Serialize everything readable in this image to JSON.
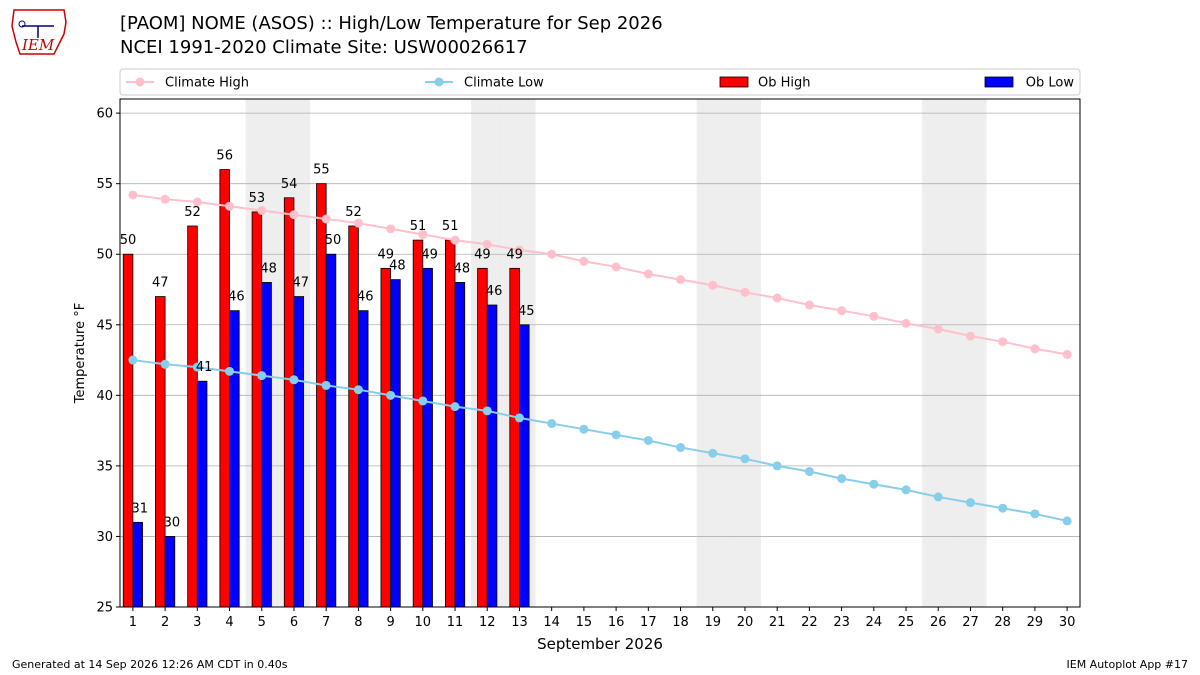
{
  "header": {
    "title_line1": "[PAOM] NOME (ASOS) :: High/Low Temperature for Sep 2026",
    "title_line2": "NCEI 1991-2020 Climate Site: USW00026617",
    "logo_text": "IEM"
  },
  "footer": {
    "generated": "Generated at 14 Sep 2026 12:26 AM CDT in 0.40s",
    "app": "IEM Autoplot App #17"
  },
  "colors": {
    "ob_high": "#ff0000",
    "ob_low": "#0000ff",
    "climate_high": "#ffc0cb",
    "climate_low": "#87ceeb",
    "weekend_shade": "#eeeeee",
    "grid": "#b0b0b0",
    "logo": "#cc0000"
  },
  "chart_data": {
    "type": "bar",
    "xlabel": "September 2026",
    "ylabel": "Temperature °F",
    "ylim": [
      25,
      61
    ],
    "yticks": [
      25,
      30,
      35,
      40,
      45,
      50,
      55,
      60
    ],
    "xlim": [
      0.6,
      30.4
    ],
    "days": [
      1,
      2,
      3,
      4,
      5,
      6,
      7,
      8,
      9,
      10,
      11,
      12,
      13,
      14,
      15,
      16,
      17,
      18,
      19,
      20,
      21,
      22,
      23,
      24,
      25,
      26,
      27,
      28,
      29,
      30
    ],
    "shaded_days": [
      5,
      6,
      12,
      13,
      19,
      20,
      26,
      27
    ],
    "grid": "y",
    "legend_position": "top",
    "legend": {
      "climate_high": "Climate High",
      "climate_low": "Climate Low",
      "ob_high": "Ob High",
      "ob_low": "Ob Low"
    },
    "ob_high": [
      50,
      47,
      52,
      56,
      53,
      54,
      55,
      52,
      49,
      51,
      51,
      49,
      49
    ],
    "ob_low": [
      31,
      30,
      41,
      46,
      48,
      47,
      50,
      46,
      48.2,
      49,
      48,
      46.4,
      45
    ],
    "ob_high_labels": [
      "50",
      "47",
      "52",
      "56",
      "53",
      "54",
      "55",
      "52",
      "49",
      "51",
      "51",
      "49",
      "49"
    ],
    "ob_low_labels": [
      "31",
      "30",
      "41",
      "46",
      "48",
      "47",
      "50",
      "46",
      "48",
      "49",
      "48",
      "46",
      "45"
    ],
    "climate_high": [
      54.2,
      53.9,
      53.7,
      53.4,
      53.1,
      52.8,
      52.5,
      52.2,
      51.8,
      51.4,
      51.0,
      50.7,
      50.3,
      50.0,
      49.5,
      49.1,
      48.6,
      48.2,
      47.8,
      47.3,
      46.9,
      46.4,
      46.0,
      45.6,
      45.1,
      44.7,
      44.2,
      43.8,
      43.3,
      42.9
    ],
    "climate_low": [
      42.5,
      42.2,
      42.0,
      41.7,
      41.4,
      41.1,
      40.7,
      40.4,
      40.0,
      39.6,
      39.2,
      38.9,
      38.4,
      38.0,
      37.6,
      37.2,
      36.8,
      36.3,
      35.9,
      35.5,
      35.0,
      34.6,
      34.1,
      33.7,
      33.3,
      32.8,
      32.4,
      32.0,
      31.6,
      31.1
    ]
  }
}
